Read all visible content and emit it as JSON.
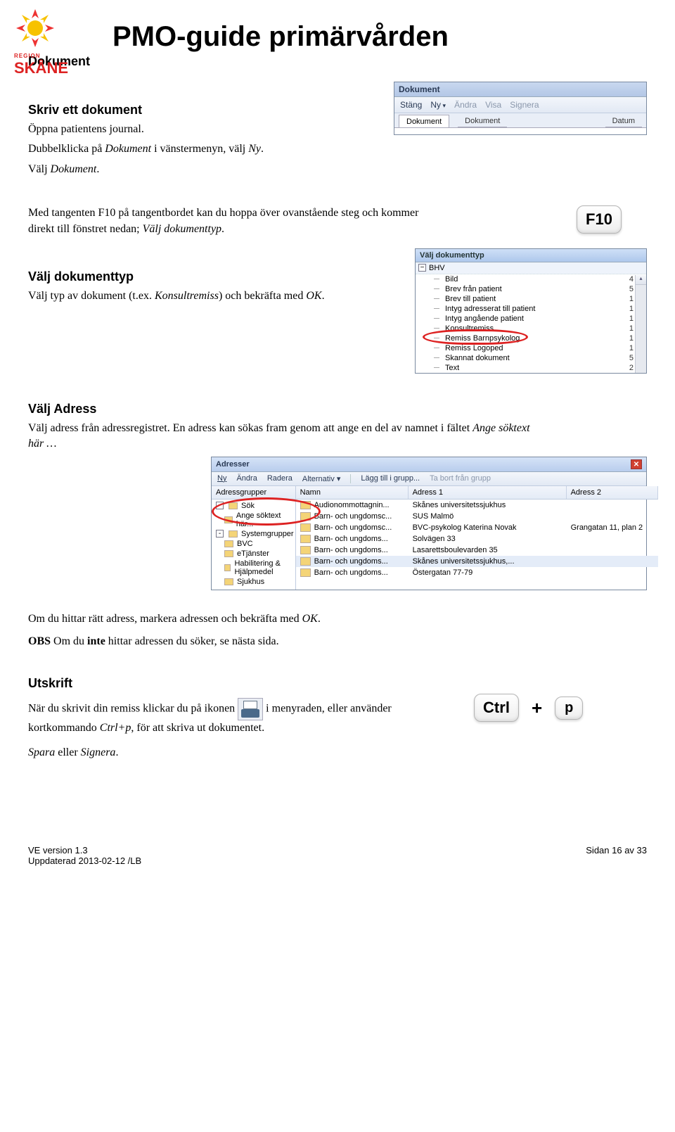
{
  "logo": {
    "region": "REGION",
    "skane": "SKÅNE"
  },
  "title": "PMO-guide primärvården",
  "doc_label": "Dokument",
  "s1": {
    "h": "Skriv ett dokument",
    "p1": "Öppna patientens journal.",
    "p2a": "Dubbelklicka på ",
    "p2i": "Dokument",
    "p2b": " i vänstermenyn, välj ",
    "p2i2": "Ny",
    "p2c": ".",
    "p3a": "Välj ",
    "p3i": "Dokument",
    "p3b": "."
  },
  "toolbar": {
    "title": "Dokument",
    "btn_stang": "Stäng",
    "btn_ny": "Ny",
    "btn_andra": "Ändra",
    "btn_visa": "Visa",
    "btn_signera": "Signera",
    "tab1": "Dokument",
    "tab2": "Dokument",
    "col_datum": "Datum"
  },
  "s2": {
    "p1": "Med tangenten F10 på tangentbordet kan du hoppa över ovanstående steg och kommer direkt till fönstret nedan; ",
    "p1i": "Välj dokumenttyp",
    "p1b": ".",
    "key": "F10",
    "h": "Välj dokumenttyp",
    "p2a": "Välj typ av dokument (t.ex. ",
    "p2i": "Konsultremiss",
    "p2b": ") och bekräfta med ",
    "p2i2": "OK",
    "p2c": "."
  },
  "tree": {
    "title": "Välj dokumenttyp",
    "root": "BHV",
    "rows": [
      {
        "l": "Bild",
        "n": "4"
      },
      {
        "l": "Brev från patient",
        "n": "5"
      },
      {
        "l": "Brev till patient",
        "n": "1"
      },
      {
        "l": "Intyg adresserat till patient",
        "n": "1"
      },
      {
        "l": "Intyg angående patient",
        "n": "1"
      },
      {
        "l": "Konsultremiss",
        "n": "1"
      },
      {
        "l": "Remiss Barnpsykolog",
        "n": "1"
      },
      {
        "l": "Remiss Logoped",
        "n": "1"
      },
      {
        "l": "Skannat dokument",
        "n": "5"
      },
      {
        "l": "Text",
        "n": "2"
      }
    ],
    "highlight_index": 5
  },
  "s3": {
    "h": "Välj Adress",
    "p1": "Välj adress från adressregistret. En adress kan sökas fram genom att ange en del av namnet i fältet ",
    "p1i": "Ange söktext här …"
  },
  "addr": {
    "title": "Adresser",
    "menu": {
      "ny": "Ny",
      "andra": "Ändra",
      "radera": "Radera",
      "alt": "Alternativ",
      "alt_drop": "▾",
      "lagg": "Lägg till i grupp...",
      "tabort": "Ta bort från grupp"
    },
    "left_header": "Adressgrupper",
    "left_tree": [
      {
        "exp": "-",
        "l": "Sök"
      },
      {
        "l": "Ange söktext här..."
      },
      {
        "exp": "-",
        "l": "Systemgrupper"
      },
      {
        "l": "BVC"
      },
      {
        "l": "eTjänster"
      },
      {
        "l": "Habilitering & Hjälpmedel"
      },
      {
        "l": "Sjukhus"
      }
    ],
    "highlight_tree_row": 1,
    "cols": [
      "Namn",
      "Adress 1",
      "Adress 2"
    ],
    "rows": [
      {
        "c": [
          "Audionommottagnin...",
          "Skånes universitetssjukhus",
          ""
        ]
      },
      {
        "c": [
          "Barn- och ungdomsc...",
          "SUS Malmö",
          ""
        ]
      },
      {
        "c": [
          "Barn- och ungdomsc...",
          "BVC-psykolog Katerina Novak",
          "Grangatan 11, plan 2"
        ]
      },
      {
        "c": [
          "Barn- och ungdoms...",
          "Solvägen 33",
          ""
        ]
      },
      {
        "c": [
          "Barn- och ungdoms...",
          "Lasarettsboulevarden 35",
          ""
        ]
      },
      {
        "c": [
          "Barn- och ungdoms...",
          "Skånes universitetssjukhus,...",
          ""
        ],
        "sel": true
      },
      {
        "c": [
          "Barn- och ungdoms...",
          "Östergatan 77-79",
          ""
        ]
      }
    ]
  },
  "s4": {
    "p1a": "Om du hittar rätt adress, markera adressen och bekräfta med ",
    "p1i": "OK",
    "p1b": ".",
    "obs1": "OBS",
    "obs2": " Om du ",
    "obs3": "inte",
    "obs4": " hittar adressen du söker, se nästa sida."
  },
  "s5": {
    "h": "Utskrift",
    "p1a": "När du skrivit din remiss klickar du på ikonen ",
    "p1b": " i menyraden, eller använder kortkommando ",
    "p1i": "Ctrl+p",
    "p1c": ", för att skriva ut dokumentet.",
    "key1": "Ctrl",
    "plus": "+",
    "key2": "p",
    "p2a": "Spara",
    "p2b": " eller ",
    "p2c": "Signera",
    "p2d": "."
  },
  "footer": {
    "l1": "VE version 1.3",
    "l2": "Uppdaterad 2013-02-12 /LB",
    "r": "Sidan 16 av 33"
  }
}
